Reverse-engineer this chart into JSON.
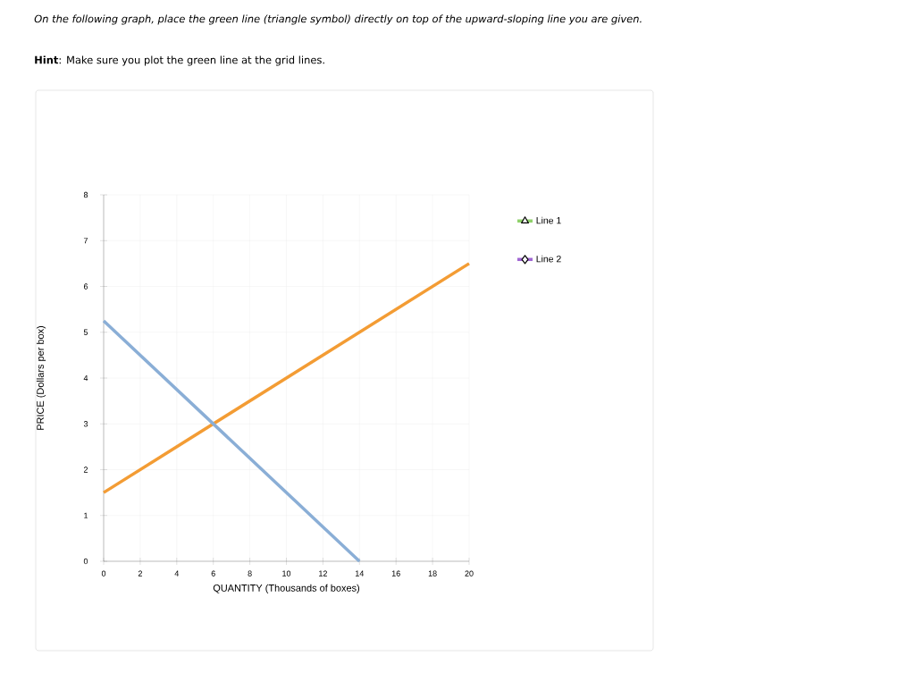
{
  "chart_data": {
    "type": "line",
    "title": "On the following graph, place the green line (triangle symbol) directly on top of the upward-sloping line you are given.",
    "subtitle": "**Hint**: Make sure you plot the green line at the grid lines.",
    "xlabel": "QUANTITY (Thousands of boxes)",
    "ylabel": "PRICE (Dollars per box)",
    "xlim": [
      0,
      20
    ],
    "ylim": [
      0,
      8
    ],
    "xticks": [
      0,
      2,
      4,
      6,
      8,
      10,
      12,
      14,
      16,
      18,
      20
    ],
    "yticks": [
      0,
      1,
      2,
      3,
      4,
      5,
      6,
      7,
      8
    ],
    "grid": true,
    "legend": "right",
    "series": [
      {
        "color": "#f39c34",
        "x": [
          0,
          20
        ],
        "values": [
          1.5,
          6.5
        ]
      },
      {
        "color": "#8aaed6",
        "x": [
          0,
          14
        ],
        "values": [
          5.25,
          0
        ]
      },
      {
        "name": "Line 1",
        "color": "#8fd16a",
        "marker": "triangle"
      },
      {
        "name": "Line 2",
        "color": "#a066d3",
        "marker": "diamond"
      }
    ]
  }
}
